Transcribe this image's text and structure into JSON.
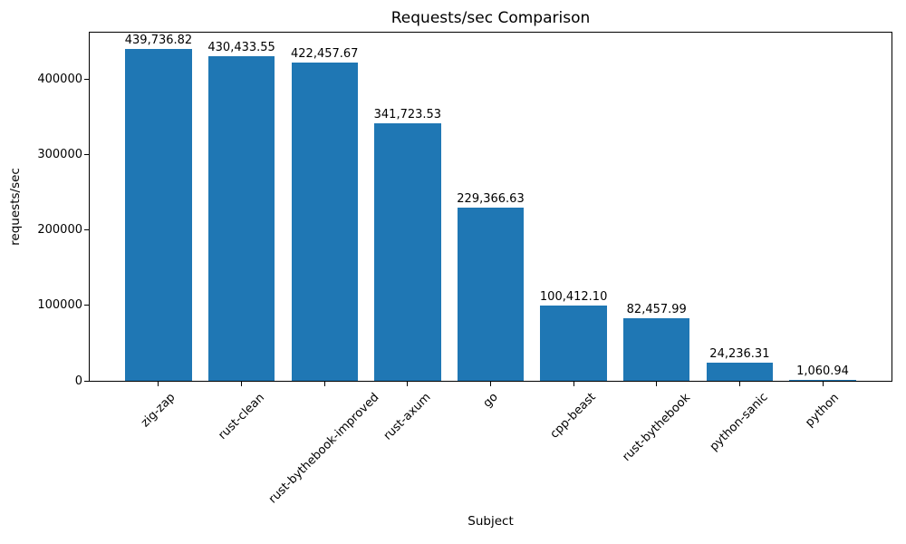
{
  "chart_data": {
    "type": "bar",
    "title": "Requests/sec Comparison",
    "xlabel": "Subject",
    "ylabel": "requests/sec",
    "categories": [
      "zig-zap",
      "rust-clean",
      "rust-bythebook-improved",
      "rust-axum",
      "go",
      "cpp-beast",
      "rust-bythebook",
      "python-sanic",
      "python"
    ],
    "values": [
      439736.82,
      430433.55,
      422457.67,
      341723.53,
      229366.63,
      100412.1,
      82457.99,
      24236.31,
      1060.94
    ],
    "bar_labels": [
      "439,736.82",
      "430,433.55",
      "422,457.67",
      "341,723.53",
      "229,366.63",
      "100,412.10",
      "82,457.99",
      "24,236.31",
      "1,060.94"
    ],
    "yticks": [
      0,
      100000,
      200000,
      300000,
      400000
    ],
    "ytick_labels": [
      "0",
      "100000",
      "200000",
      "300000",
      "400000"
    ],
    "ylim": [
      0,
      461724
    ],
    "bar_color": "#1f77b4",
    "background_color": "#ffffff",
    "grid": false,
    "legend": null,
    "xtick_rotation_deg": 45
  }
}
